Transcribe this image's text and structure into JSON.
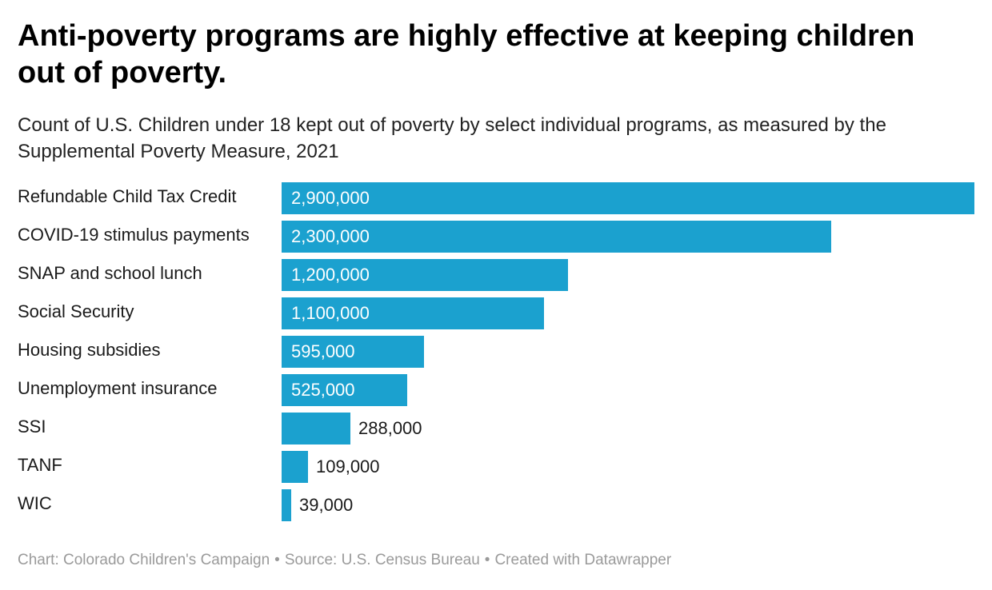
{
  "header": {
    "title": "Anti-poverty programs are highly effective at keeping children out of poverty.",
    "subtitle": "Count of U.S. Children under 18 kept out of poverty by select individual programs, as measured by the Supplemental Poverty Measure, 2021"
  },
  "footer": {
    "chart_credit": "Chart: Colorado Children's Campaign",
    "source": "Source: U.S. Census Bureau",
    "created_with": "Created with Datawrapper",
    "separator": "•"
  },
  "colors": {
    "bar": "#1ba1cf"
  },
  "chart_data": {
    "type": "bar",
    "orientation": "horizontal",
    "categories": [
      "Refundable Child Tax Credit",
      "COVID-19 stimulus payments",
      "SNAP and school lunch",
      "Social Security",
      "Housing subsidies",
      "Unemployment insurance",
      "SSI",
      "TANF",
      "WIC"
    ],
    "values": [
      2900000,
      2300000,
      1200000,
      1100000,
      595000,
      525000,
      288000,
      109000,
      39000
    ],
    "value_labels": [
      "2,900,000",
      "2,300,000",
      "1,200,000",
      "1,100,000",
      "595,000",
      "525,000",
      "288,000",
      "109,000",
      "39,000"
    ],
    "xlim": [
      0,
      2900000
    ],
    "grid": false
  }
}
